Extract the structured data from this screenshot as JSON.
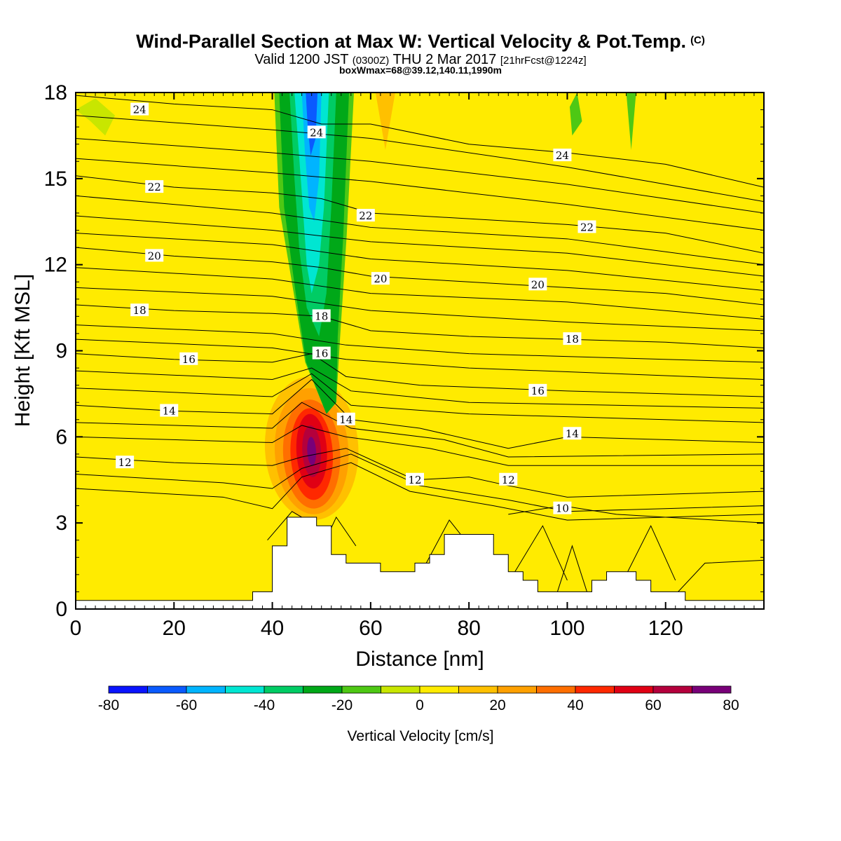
{
  "title": {
    "main": "Wind-Parallel Section at Max W: Vertical Velocity & Pot.Temp.",
    "copyright": "(C)",
    "valid_prefix": "Valid 1200 JST",
    "valid_utc": "(0300Z)",
    "valid_date": "THU 2 Mar 2017",
    "forecast": "[21hrFcst@1224z]",
    "box": "boxWmax=68@39.12,140.11,1990m"
  },
  "chart_data": {
    "type": "heatmap",
    "xlabel": "Distance [nm]",
    "ylabel": "Height [Kft MSL]",
    "xlim": [
      0,
      140
    ],
    "ylim": [
      0,
      18
    ],
    "x_ticks": [
      "0",
      "20",
      "40",
      "60",
      "80",
      "100",
      "120"
    ],
    "y_ticks": [
      "0",
      "3",
      "6",
      "9",
      "12",
      "15",
      "18"
    ],
    "colorbar": {
      "label": "Vertical Velocity [cm/s]",
      "tick_labels": [
        "-80",
        "-60",
        "-40",
        "-20",
        "0",
        "20",
        "40",
        "60",
        "80"
      ],
      "levels": [
        -80,
        -70,
        -60,
        -50,
        -40,
        -30,
        -20,
        -10,
        0,
        10,
        20,
        30,
        40,
        50,
        60,
        70,
        80
      ],
      "colors": [
        "#0a14ff",
        "#0a5aff",
        "#00b4ff",
        "#00e6d2",
        "#00cc64",
        "#00a818",
        "#4ec814",
        "#c8e600",
        "#ffeb00",
        "#ffc000",
        "#ffa000",
        "#ff6e00",
        "#ff2800",
        "#e00014",
        "#b4003c",
        "#780078"
      ]
    },
    "max_w_cms": 68,
    "max_w_location": "39.12,140.11",
    "max_w_height_m": 1990,
    "updraft_column": {
      "x_nm": 48,
      "height_kft": [
        3.2,
        8.0
      ],
      "peak_cms": 68
    },
    "downdraft_column": {
      "x_nm": [
        42,
        55
      ],
      "height_kft": [
        6.5,
        18
      ],
      "min_cms": -60
    },
    "terrain": [
      [
        0,
        0.3
      ],
      [
        36,
        0.3
      ],
      [
        36,
        0.6
      ],
      [
        40,
        0.6
      ],
      [
        40,
        2.2
      ],
      [
        43,
        2.2
      ],
      [
        43,
        3.2
      ],
      [
        49,
        3.2
      ],
      [
        49,
        2.9
      ],
      [
        52,
        2.9
      ],
      [
        52,
        1.9
      ],
      [
        55,
        1.9
      ],
      [
        55,
        1.6
      ],
      [
        62,
        1.6
      ],
      [
        62,
        1.3
      ],
      [
        69,
        1.3
      ],
      [
        69,
        1.6
      ],
      [
        72,
        1.6
      ],
      [
        72,
        1.9
      ],
      [
        75,
        1.9
      ],
      [
        75,
        2.6
      ],
      [
        85,
        2.6
      ],
      [
        85,
        1.9
      ],
      [
        88,
        1.9
      ],
      [
        88,
        1.3
      ],
      [
        91,
        1.3
      ],
      [
        91,
        1.0
      ],
      [
        94,
        1.0
      ],
      [
        94,
        0.6
      ],
      [
        105,
        0.6
      ],
      [
        105,
        1.0
      ],
      [
        108,
        1.0
      ],
      [
        108,
        1.3
      ],
      [
        114,
        1.3
      ],
      [
        114,
        1.0
      ],
      [
        117,
        1.0
      ],
      [
        117,
        0.6
      ],
      [
        124,
        0.6
      ],
      [
        124,
        0.3
      ],
      [
        140,
        0.3
      ]
    ],
    "theta_labels": [
      {
        "text": "24",
        "x": 13,
        "y": 17.4
      },
      {
        "text": "24",
        "x": 49,
        "y": 16.6
      },
      {
        "text": "24",
        "x": 99,
        "y": 15.8
      },
      {
        "text": "22",
        "x": 16,
        "y": 14.7
      },
      {
        "text": "22",
        "x": 59,
        "y": 13.7
      },
      {
        "text": "22",
        "x": 104,
        "y": 13.3
      },
      {
        "text": "20",
        "x": 16,
        "y": 12.3
      },
      {
        "text": "20",
        "x": 62,
        "y": 11.5
      },
      {
        "text": "20",
        "x": 94,
        "y": 11.3
      },
      {
        "text": "18",
        "x": 13,
        "y": 10.4
      },
      {
        "text": "18",
        "x": 50,
        "y": 10.2
      },
      {
        "text": "18",
        "x": 101,
        "y": 9.4
      },
      {
        "text": "16",
        "x": 23,
        "y": 8.7
      },
      {
        "text": "16",
        "x": 50,
        "y": 8.9
      },
      {
        "text": "16",
        "x": 94,
        "y": 7.6
      },
      {
        "text": "14",
        "x": 19,
        "y": 6.9
      },
      {
        "text": "14",
        "x": 55,
        "y": 6.6
      },
      {
        "text": "14",
        "x": 101,
        "y": 6.1
      },
      {
        "text": "12",
        "x": 10,
        "y": 5.1
      },
      {
        "text": "12",
        "x": 69,
        "y": 4.5
      },
      {
        "text": "12",
        "x": 88,
        "y": 4.5
      },
      {
        "text": "10",
        "x": 99,
        "y": 3.5
      }
    ],
    "theta_lines": [
      {
        "level": 24,
        "pts": [
          [
            0,
            17.9
          ],
          [
            20,
            17.6
          ],
          [
            40,
            17.4
          ],
          [
            50,
            16.9
          ],
          [
            60,
            16.9
          ],
          [
            80,
            16.2
          ],
          [
            100,
            15.9
          ],
          [
            120,
            15.5
          ],
          [
            140,
            14.7
          ]
        ]
      },
      {
        "level": 22,
        "pts": [
          [
            0,
            15.1
          ],
          [
            20,
            14.7
          ],
          [
            40,
            14.5
          ],
          [
            50,
            14.3
          ],
          [
            60,
            13.8
          ],
          [
            80,
            13.6
          ],
          [
            100,
            13.4
          ],
          [
            120,
            13.1
          ],
          [
            140,
            12.4
          ]
        ]
      },
      {
        "level": 20,
        "pts": [
          [
            0,
            12.6
          ],
          [
            20,
            12.3
          ],
          [
            40,
            12.1
          ],
          [
            50,
            11.9
          ],
          [
            60,
            11.6
          ],
          [
            80,
            11.4
          ],
          [
            100,
            11.2
          ],
          [
            120,
            11.0
          ],
          [
            140,
            10.6
          ]
        ]
      },
      {
        "level": 18,
        "pts": [
          [
            0,
            10.6
          ],
          [
            20,
            10.4
          ],
          [
            40,
            10.3
          ],
          [
            50,
            10.2
          ],
          [
            60,
            9.7
          ],
          [
            80,
            9.5
          ],
          [
            100,
            9.4
          ],
          [
            120,
            9.3
          ],
          [
            140,
            9.1
          ]
        ]
      },
      {
        "level": 16,
        "pts": [
          [
            0,
            8.9
          ],
          [
            20,
            8.7
          ],
          [
            40,
            8.6
          ],
          [
            48,
            8.9
          ],
          [
            55,
            8.1
          ],
          [
            70,
            7.8
          ],
          [
            100,
            7.6
          ],
          [
            120,
            7.5
          ],
          [
            140,
            7.4
          ]
        ]
      },
      {
        "level": 14,
        "pts": [
          [
            0,
            7.1
          ],
          [
            20,
            6.9
          ],
          [
            40,
            6.8
          ],
          [
            48,
            8.0
          ],
          [
            56,
            6.6
          ],
          [
            70,
            6.3
          ],
          [
            88,
            5.6
          ],
          [
            100,
            6.0
          ],
          [
            120,
            5.9
          ],
          [
            140,
            5.8
          ]
        ]
      },
      {
        "level": 12,
        "pts": [
          [
            0,
            5.3
          ],
          [
            20,
            5.1
          ],
          [
            40,
            5.0
          ],
          [
            46,
            5.3
          ],
          [
            55,
            5.6
          ],
          [
            69,
            4.5
          ],
          [
            80,
            4.6
          ],
          [
            88,
            4.3
          ],
          [
            100,
            3.9
          ],
          [
            120,
            4.0
          ],
          [
            140,
            4.1
          ]
        ]
      },
      {
        "level": 10,
        "pts": [
          [
            88,
            3.3
          ],
          [
            99,
            3.6
          ],
          [
            110,
            3.3
          ],
          [
            120,
            3.2
          ],
          [
            140,
            3.0
          ]
        ]
      }
    ]
  }
}
